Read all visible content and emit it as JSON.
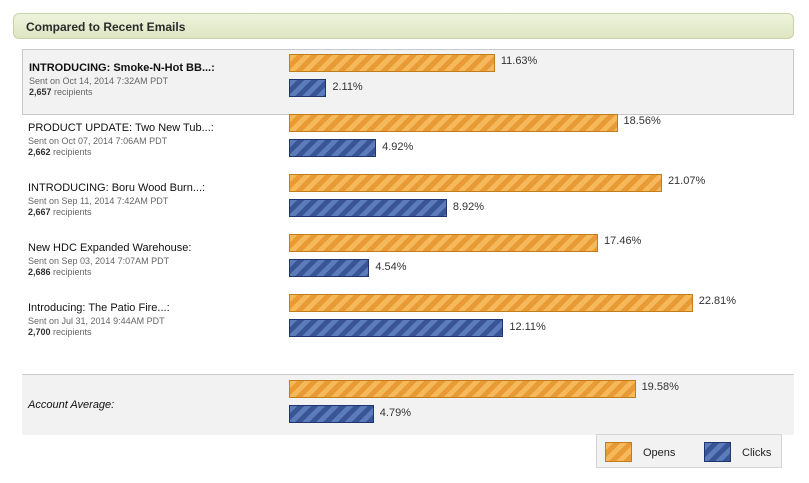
{
  "header": {
    "title": "Compared to Recent Emails"
  },
  "chart_data": {
    "type": "bar",
    "title": "Compared to Recent Emails",
    "series_names": [
      "Opens",
      "Clicks"
    ],
    "colors": {
      "opens": "#e89a34",
      "clicks": "#3a5596"
    },
    "emails": [
      {
        "title": "INTRODUCING: Smoke-N-Hot BB...:",
        "sent": "Sent on Oct 14, 2014 7:32AM PDT",
        "recipients_count": "2,657",
        "recipients_label": "recipients",
        "opens": 11.63,
        "clicks": 2.11,
        "opens_label": "11.63%",
        "clicks_label": "2.11%",
        "highlight": true
      },
      {
        "title": "PRODUCT UPDATE: Two New Tub...:",
        "sent": "Sent on Oct 07, 2014 7:06AM PDT",
        "recipients_count": "2,662",
        "recipients_label": "recipients",
        "opens": 18.56,
        "clicks": 4.92,
        "opens_label": "18.56%",
        "clicks_label": "4.92%",
        "highlight": false
      },
      {
        "title": "INTRODUCING: Boru Wood Burn...:",
        "sent": "Sent on Sep 11, 2014 7:42AM PDT",
        "recipients_count": "2,667",
        "recipients_label": "recipients",
        "opens": 21.07,
        "clicks": 8.92,
        "opens_label": "21.07%",
        "clicks_label": "8.92%",
        "highlight": false
      },
      {
        "title": "New HDC Expanded Warehouse:",
        "sent": "Sent on Sep 03, 2014 7:07AM PDT",
        "recipients_count": "2,686",
        "recipients_label": "recipients",
        "opens": 17.46,
        "clicks": 4.54,
        "opens_label": "17.46%",
        "clicks_label": "4.54%",
        "highlight": false
      },
      {
        "title": "Introducing: The Patio Fire...:",
        "sent": "Sent on Jul 31, 2014 9:44AM PDT",
        "recipients_count": "2,700",
        "recipients_label": "recipients",
        "opens": 22.81,
        "clicks": 12.11,
        "opens_label": "22.81%",
        "clicks_label": "12.11%",
        "highlight": false
      }
    ],
    "average": {
      "label": "Account Average:",
      "opens": 19.58,
      "clicks": 4.79,
      "opens_label": "19.58%",
      "clicks_label": "4.79%"
    },
    "legend": {
      "opens": "Opens",
      "clicks": "Clicks"
    }
  }
}
